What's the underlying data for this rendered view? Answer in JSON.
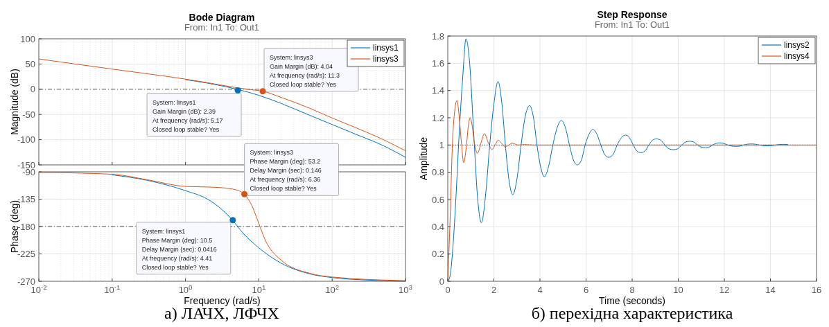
{
  "chart_data": [
    {
      "type": "line",
      "title": "Bode Diagram",
      "subtitle": "From: In1  To: Out1",
      "ylabel": "Magnitude (dB)",
      "log": "x",
      "xlim": [
        0.01,
        1000
      ],
      "xticks": [
        {
          "value": 0.01,
          "label": null
        },
        {
          "value": 0.1,
          "label": null
        },
        {
          "value": 1,
          "label": null
        },
        {
          "value": 10,
          "label": null
        },
        {
          "value": 100,
          "label": null
        },
        {
          "value": 1000,
          "label": null
        }
      ],
      "ylim": [
        -150,
        100
      ],
      "yticks": [
        -150,
        -100,
        -50,
        0,
        50,
        100
      ],
      "tick_labels": "y",
      "grid": true,
      "legend": "top right",
      "x": [
        1,
        2,
        5,
        10,
        20,
        50,
        100,
        200,
        500,
        1000
      ],
      "series": [
        {
          "name": "linsys1",
          "color": "#0072bd",
          "values": [
            19,
            12,
            0,
            -12,
            -28,
            -52,
            -70,
            -88,
            -112,
            -135
          ]
        },
        {
          "name": "linsys3",
          "color": "#d95319",
          "x": [
            0.01,
            0.1,
            1,
            2,
            5,
            8,
            11.3,
            20,
            50,
            100,
            200,
            500,
            1000
          ],
          "values": [
            60,
            40,
            20,
            13,
            3,
            -1,
            -4,
            -16,
            -38,
            -57,
            -75,
            -100,
            -122
          ]
        }
      ],
      "ref_lines": [
        {
          "axis": "y",
          "value": 0,
          "line_style": "dashed"
        }
      ],
      "annotations": [
        {
          "text": "System: linsys1\nGain Margin (dB): 2.39\nAt frequency (rad/s): 5.17\nClosed loop stable? Yes",
          "x": 5.17,
          "y": -2.39
        },
        {
          "text": "System: linsys3\nGain Margin (dB): 4.04\nAt frequency (rad/s): 11.3\nClosed loop stable? Yes",
          "x": 11.3,
          "y": -4.04
        }
      ]
    },
    {
      "type": "line",
      "xlabel": "Frequency  (rad/s)",
      "ylabel": "Phase (deg)",
      "log": "x",
      "xlim": [
        0.01,
        1000
      ],
      "xticks": [
        {
          "value": 0.01,
          "label": "10$^{-2}$"
        },
        {
          "value": 0.1,
          "label": "10$^{-1}$"
        },
        {
          "value": 1,
          "label": "10$^{0}$"
        },
        {
          "value": 10,
          "label": "10$^{1}$"
        },
        {
          "value": 100,
          "label": "10$^{2}$"
        },
        {
          "value": 1000,
          "label": "10$^{3}$"
        }
      ],
      "ylim": [
        -270,
        -90
      ],
      "yticks": [
        -270,
        -225,
        -180,
        -135,
        -90
      ],
      "grid": true,
      "series": [
        {
          "color": "#0072bd",
          "x": [
            0.1,
            0.3,
            1,
            2,
            3,
            4.41,
            6,
            10,
            20,
            50,
            100,
            300,
            1000
          ],
          "values": [
            -95,
            -104,
            -121,
            -135,
            -150,
            -170,
            -190,
            -215,
            -240,
            -258,
            -264,
            -268,
            -270
          ]
        },
        {
          "color": "#d95319",
          "x": [
            0.01,
            0.1,
            0.3,
            1,
            2,
            3,
            5,
            6.36,
            8,
            10,
            12,
            20,
            50,
            100,
            1000
          ],
          "values": [
            -91,
            -94,
            -103,
            -114,
            -115,
            -116,
            -120,
            -127,
            -145,
            -175,
            -200,
            -235,
            -257,
            -263,
            -269
          ]
        }
      ],
      "ref_lines": [
        {
          "axis": "y",
          "value": -180,
          "line_style": "dashed"
        }
      ],
      "annotations": [
        {
          "text": "System: linsys1\nPhase Margin (deg): 10.5\nDelay Margin (sec): 0.0416\nAt frequency (rad/s): 4.41\nClosed loop stable? Yes",
          "x": 4.41,
          "y": -169.5
        },
        {
          "text": "System: linsys3\nPhase Margin (deg): 53.2\nDelay Margin (sec): 0.146\nAt frequency (rad/s): 6.36\nClosed loop stable? Yes",
          "x": 6.36,
          "y": -126.8
        },
        "а) ЛАЧХ, ЛФЧХ"
      ]
    },
    {
      "type": "line",
      "title": "Step Response",
      "subtitle": "From: In1  To: Out1",
      "xlabel": "Time (seconds)",
      "ylabel": "Amplitude",
      "xlim": [
        0,
        16
      ],
      "xticks": [
        0,
        2,
        4,
        6,
        8,
        10,
        12,
        14,
        16
      ],
      "ylim": [
        0,
        1.8
      ],
      "yticks": [
        0,
        0.2,
        0.4,
        0.6,
        0.8,
        1,
        1.2,
        1.4,
        1.6,
        1.8
      ],
      "grid": true,
      "legend": "top right",
      "series": [
        {
          "name": "linsys2",
          "color": "#0072bd",
          "x": [
            0,
            0.1,
            0.2,
            0.35,
            0.5,
            0.65,
            0.79,
            0.95,
            1.12,
            1.3,
            1.46,
            1.65,
            1.82,
            2.0,
            2.18,
            2.35,
            2.5,
            2.65,
            2.82,
            3.0,
            3.18,
            3.35,
            3.55,
            3.72,
            3.87,
            4.03,
            4.19,
            4.37,
            4.56,
            4.75,
            4.93,
            5.1,
            5.28,
            5.45,
            5.62,
            5.8,
            5.96,
            6.13,
            6.3,
            6.47,
            6.64,
            6.81,
            6.98,
            7.17,
            7.35,
            7.54,
            7.72,
            7.88,
            8.05,
            8.21,
            8.38,
            8.55,
            8.72,
            8.88,
            9.05,
            9.24,
            9.42,
            9.6,
            9.79,
            9.97,
            10.15,
            10.32,
            10.5,
            10.67,
            10.84,
            11.01,
            11.18,
            11.33,
            11.49,
            11.64,
            11.8,
            11.97,
            12.15,
            12.33,
            12.5,
            12.67,
            12.83,
            13.0,
            13.16,
            13.34,
            13.52,
            13.7,
            13.87,
            14.05,
            14.22,
            14.4,
            14.58,
            14.76
          ],
          "values": [
            0,
            0.04,
            0.2,
            0.6,
            1.1,
            1.5,
            1.78,
            1.6,
            1.1,
            0.6,
            0.43,
            0.65,
            1.0,
            1.3,
            1.466,
            1.3,
            1.0,
            0.75,
            0.635,
            0.75,
            1.0,
            1.2,
            1.29,
            1.2,
            1.0,
            0.84,
            0.767,
            0.84,
            1.0,
            1.13,
            1.18,
            1.13,
            1.0,
            0.89,
            0.855,
            0.89,
            1.0,
            1.08,
            1.115,
            1.08,
            1.0,
            0.93,
            0.91,
            0.93,
            1.0,
            1.055,
            1.073,
            1.055,
            1.0,
            0.955,
            0.944,
            0.955,
            1.0,
            1.035,
            1.045,
            1.035,
            1.0,
            0.972,
            0.966,
            0.972,
            1.0,
            1.022,
            1.028,
            1.022,
            1.0,
            0.984,
            0.98,
            0.984,
            1.0,
            1.012,
            1.016,
            1.012,
            1.0,
            0.992,
            0.99,
            0.992,
            1.0,
            1.006,
            1.008,
            1.006,
            1.0,
            0.995,
            0.994,
            0.995,
            1.0,
            1.004,
            1.005,
            1.004
          ]
        },
        {
          "name": "linsys4",
          "color": "#d95319",
          "x": [
            0,
            0.1,
            0.2,
            0.3,
            0.4,
            0.5,
            0.6,
            0.69,
            0.8,
            0.9,
            0.97,
            1.05,
            1.15,
            1.29,
            1.45,
            1.59,
            1.75,
            1.92,
            2.05,
            2.19,
            2.35,
            2.49,
            2.65,
            2.8,
            3.05,
            3.34,
            3.7,
            4.5,
            6,
            8,
            10,
            12,
            14,
            16
          ],
          "values": [
            0,
            0.45,
            1.0,
            1.25,
            1.327,
            1.2,
            1.0,
            0.87,
            0.98,
            1.15,
            1.2,
            1.15,
            1.02,
            0.94,
            1.02,
            1.083,
            1.02,
            0.966,
            1.0,
            1.035,
            1.01,
            0.985,
            1.0,
            1.013,
            1.0,
            1.003,
            1.0,
            1.0,
            1.0,
            1.0,
            1.0,
            1.0,
            1.0,
            1.0
          ]
        }
      ],
      "ref_lines": [
        {
          "axis": "y",
          "value": 1,
          "line_style": "dotted"
        }
      ],
      "annotations": [
        "б) перехідна характеристика"
      ]
    }
  ]
}
